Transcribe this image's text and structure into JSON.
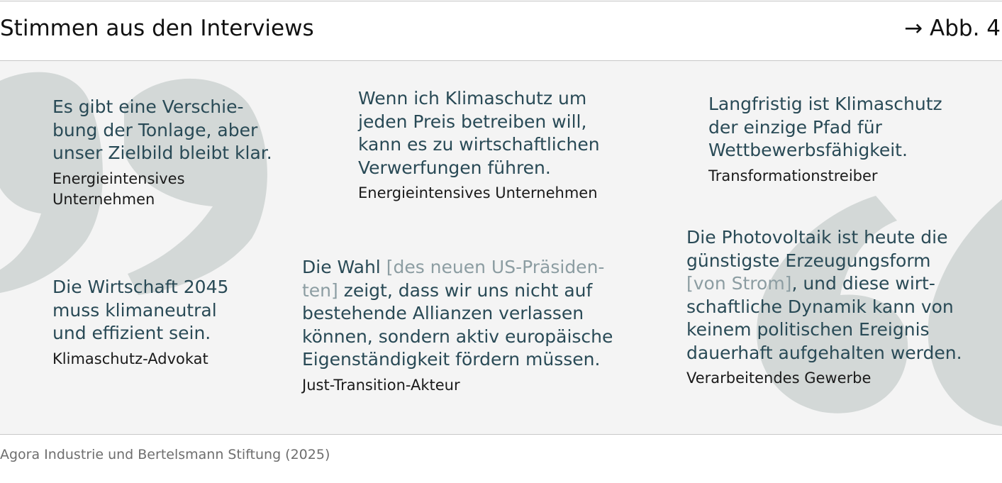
{
  "header": {
    "title": "Stimmen aus den Interviews",
    "figure_ref": "→ Abb. 4"
  },
  "quotes": [
    {
      "lines": [
        "Es gibt eine Verschie-",
        "bung der Tonlage, aber",
        "unser Zielbild bleibt klar."
      ],
      "source_lines": [
        "Energieintensives",
        "Unternehmen"
      ]
    },
    {
      "lines": [
        "Wenn ich Klimaschutz um",
        "jeden Preis betreiben will,",
        "kann es zu wirtschaftlichen",
        "Verwerfungen führen."
      ],
      "source_lines": [
        "Energieintensives Unternehmen"
      ]
    },
    {
      "lines": [
        "Langfristig ist Klimaschutz",
        "der einzige Pfad für",
        "Wettbewerbsfähigkeit."
      ],
      "source_lines": [
        "Transformationstreiber"
      ]
    },
    {
      "lines": [
        "Die Wirtschaft 2045",
        "muss klimaneutral",
        "und effizient sein."
      ],
      "source_lines": [
        "Klimaschutz-Advokat"
      ]
    },
    {
      "text_before": "Die Wahl ",
      "insert_1": "[des neuen US-Präsiden-",
      "insert_2": "ten]",
      "text_after_insert": " zeigt, dass wir uns nicht auf",
      "lines": [
        "bestehende Allianzen verlassen",
        "können, sondern aktiv europäische",
        "Eigenständigkeit fördern müssen."
      ],
      "source_lines": [
        "Just-Transition-Akteur"
      ]
    },
    {
      "lines_before": [
        "Die Photovoltaik ist heute die",
        "günstigste Erzeugungsform"
      ],
      "insert": "[von Strom]",
      "text_after_insert": ", und diese wirt-",
      "lines": [
        "schaftliche Dynamik kann von",
        "keinem politischen Ereignis",
        "dauerhaft aufgehalten werden."
      ],
      "source_lines": [
        "Verarbeitendes Gewerbe"
      ]
    }
  ],
  "footer": {
    "source": "Agora Industrie und Bertelsmann Stiftung (2025)"
  },
  "colors": {
    "quote_text": "#294a56",
    "insert_text": "#8c9da2",
    "panel_background": "#f4f4f4",
    "quote_mark": "#d3d8d7"
  }
}
